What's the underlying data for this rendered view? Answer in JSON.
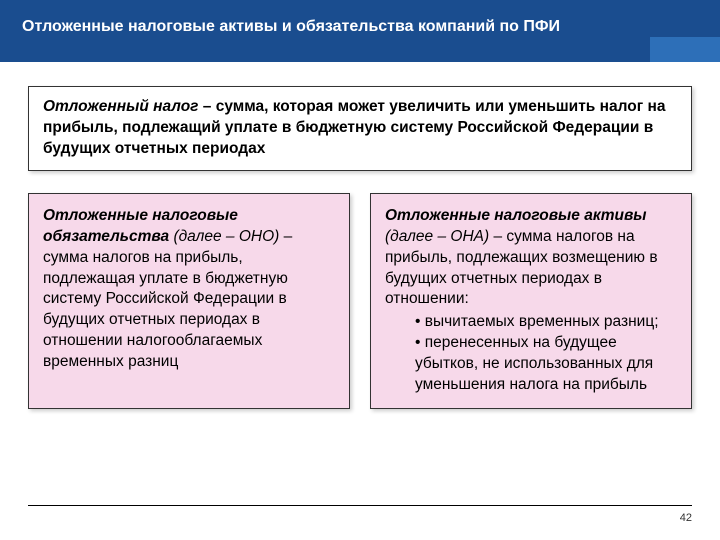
{
  "header": {
    "title": "Отложенные налоговые активы и обязательства компаний по ПФИ",
    "background_color": "#1a4d8f",
    "accent_color": "#2d6fb8",
    "title_color": "#ffffff",
    "title_fontsize": 16
  },
  "definition": {
    "term": "Отложенный налог",
    "text": " – сумма, которая может увеличить или уменьшить налог на прибыль, подлежащий уплате в бюджетную систему Российской Федерации в будущих отчетных периодах",
    "border_color": "#333333",
    "background_color": "#ffffff",
    "fontsize": 15.5,
    "font_weight": "bold"
  },
  "columns": {
    "background_color": "#f7d9ea",
    "border_color": "#333333",
    "fontsize": 15.5,
    "left": {
      "term": "Отложенные налоговые обязательства",
      "paren": " (далее – ОНО)",
      "body": " – сумма налогов на прибыль, подлежащая уплате в бюджетную систему Российской Федерации в будущих отчетных периодах в отношении налогооблагаемых временных разниц"
    },
    "right": {
      "term": "Отложенные налоговые активы",
      "paren": " (далее – ОНА)",
      "body_lead": " – сумма налогов на прибыль, подлежащих возмещению в будущих отчетных периодах в отношении:",
      "bullets": [
        "вычитаемых временных разниц;",
        "перенесенных на будущее убытков, не использованных для уменьшения налога на прибыль"
      ]
    }
  },
  "footer": {
    "page_number": "42",
    "fontsize": 11
  }
}
